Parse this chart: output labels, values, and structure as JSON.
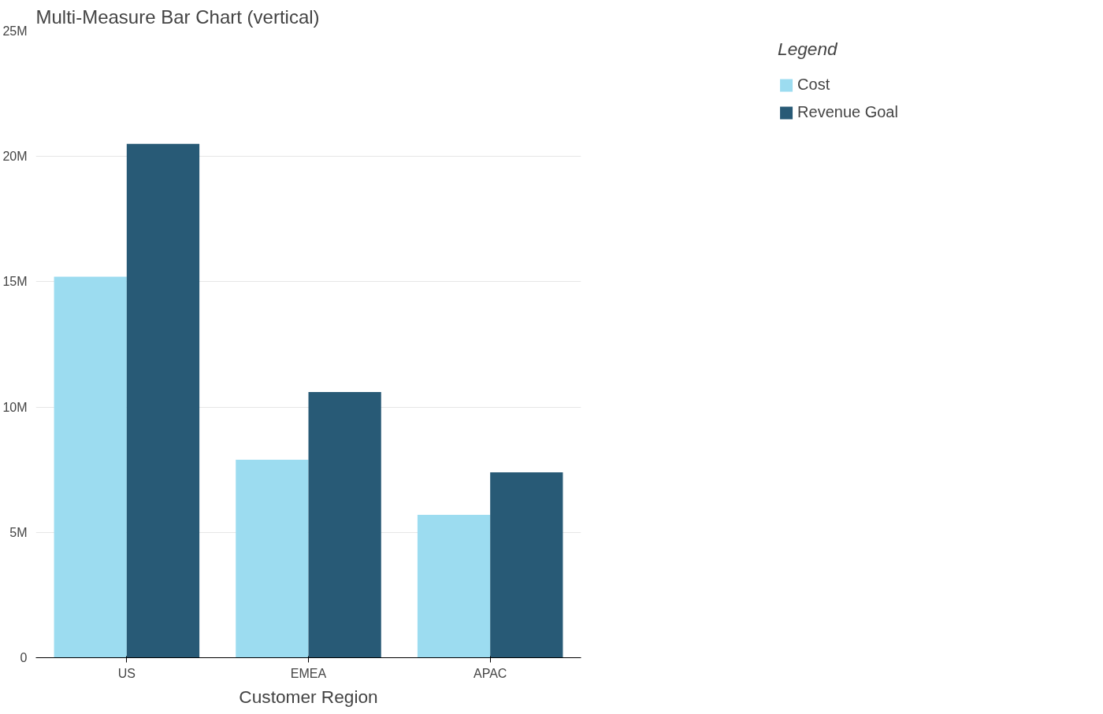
{
  "chart_data": {
    "type": "bar",
    "title": "Multi-Measure Bar Chart (vertical)",
    "xlabel": "Customer Region",
    "legend_title": "Legend",
    "categories": [
      "US",
      "EMEA",
      "APAC"
    ],
    "series": [
      {
        "name": "Cost",
        "color": "#9cdcf0",
        "values": [
          15.2,
          7.9,
          5.7
        ]
      },
      {
        "name": "Revenue Goal",
        "color": "#285a76",
        "values": [
          20.5,
          10.6,
          7.4
        ]
      }
    ],
    "ylim": [
      0,
      25
    ],
    "yticks": [
      0,
      {
        "value": 5,
        "label": "5M"
      },
      {
        "value": 10,
        "label": "10M"
      },
      {
        "value": 15,
        "label": "15M"
      },
      {
        "value": 20,
        "label": "20M"
      },
      {
        "value": 25,
        "label": "25M"
      }
    ],
    "grid": "y",
    "legend": "top right"
  }
}
